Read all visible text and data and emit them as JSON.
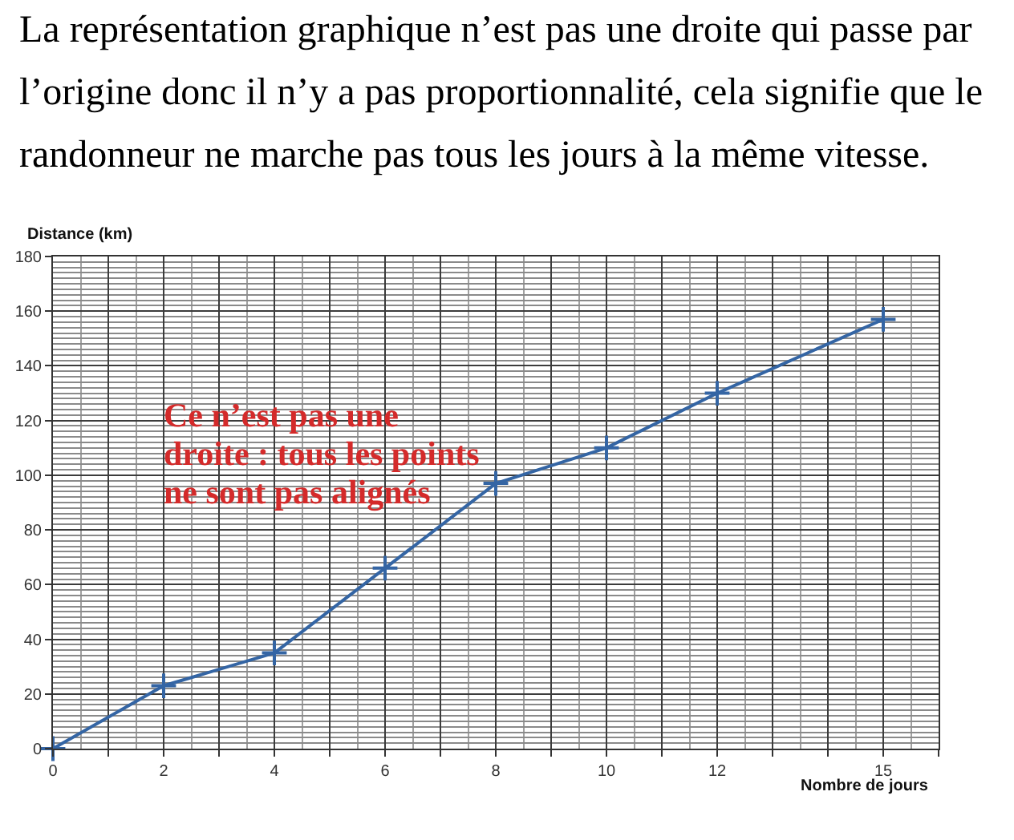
{
  "chart_data": {
    "type": "line",
    "title": "La représentation graphique n’est pas une droite qui passe par l’origine donc il n’y a pas proportionnalité, cela signifie que le randonneur ne marche pas tous les jours à la même vitesse.",
    "xlabel": "Nombre de jours",
    "ylabel": "Distance (km)",
    "annotations": [
      "Ce n’est pas une droite : tous les points ne sont pas alignés"
    ],
    "x": [
      0,
      2,
      4,
      6,
      8,
      10,
      12,
      15
    ],
    "series": [
      {
        "color": "#3465a4",
        "values": [
          0,
          23,
          35,
          66,
          97,
          110,
          130,
          157
        ]
      }
    ],
    "xlim": [
      0,
      16
    ],
    "ylim": [
      0,
      180
    ],
    "xticks": [
      0,
      {
        "value": 1,
        "label": null
      },
      2,
      {
        "value": 3,
        "label": null
      },
      4,
      {
        "value": 5,
        "label": null
      },
      6,
      {
        "value": 7,
        "label": null
      },
      8,
      {
        "value": 9,
        "label": null
      },
      10,
      {
        "value": 11,
        "label": null
      },
      12,
      {
        "value": 13,
        "label": null
      },
      {
        "value": 14,
        "label": null
      },
      15,
      {
        "value": 16,
        "label": null
      }
    ],
    "yticks": [
      0,
      20,
      40,
      60,
      80,
      100,
      120,
      140,
      160,
      180
    ],
    "grid": true,
    "marker": "cross",
    "line_style": "solid"
  }
}
